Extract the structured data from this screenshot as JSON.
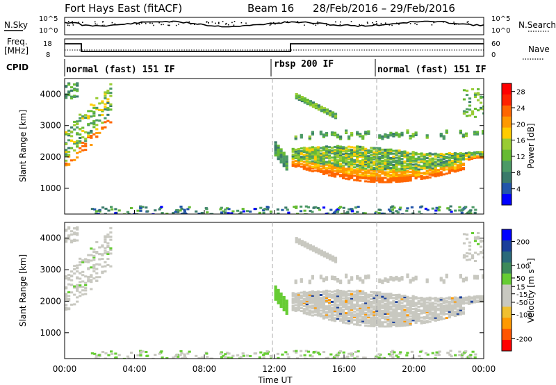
{
  "header": {
    "title": "Fort Hays East (fitACF)",
    "beam": "Beam 16",
    "date_range": "28/Feb/2016 – 29/Feb/2016"
  },
  "noise_panel": {
    "left_label": "N.Sky",
    "right_label": "N.Search",
    "left_ticks": [
      "10^5",
      "10^0"
    ],
    "right_ticks": [
      "10^5",
      "10^0"
    ]
  },
  "freq_panel": {
    "left_label_line1": "Freq.",
    "left_label_line2": "[MHz]",
    "right_label": "Nave",
    "left_ticks": [
      "18",
      "8"
    ],
    "right_ticks": [
      "60",
      "0"
    ]
  },
  "cpid": {
    "label": "CPID",
    "modes": [
      {
        "text": "normal (fast) 151 IF",
        "start_hour": 0
      },
      {
        "text": "rbsp 200 IF",
        "start_hour": 12
      },
      {
        "text": "normal (fast) 151 IF",
        "start_hour": 18
      }
    ]
  },
  "colors": {
    "power": [
      "#0000ff",
      "#2255aa",
      "#3a7a6a",
      "#4c9a66",
      "#66bb33",
      "#99cc33",
      "#ffcc00",
      "#ff9900",
      "#ff6600",
      "#ff2200",
      "#ff0000"
    ],
    "velocity": [
      "#0000ff",
      "#1a3f9a",
      "#2a6a7a",
      "#3d8a5a",
      "#66cc33",
      "#c8c8c0",
      "#c8c8c0",
      "#f0c030",
      "#ff9900",
      "#ff5500",
      "#ff0000"
    ]
  },
  "chart_data": [
    {
      "type": "heatmap",
      "name": "power",
      "ylabel": "Slant Range [km]",
      "ylim": [
        180,
        4500
      ],
      "yticks": [
        "4000",
        "3000",
        "2000",
        "1000"
      ],
      "colorbar_label": "Power [dB]",
      "colorbar_ticks": [
        "28",
        "24",
        "20",
        "16",
        "12",
        "8",
        "4"
      ],
      "colorbar_range": [
        0,
        30
      ]
    },
    {
      "type": "heatmap",
      "name": "velocity",
      "ylabel": "Slant Range [km]",
      "ylim": [
        180,
        4500
      ],
      "yticks": [
        "4000",
        "3000",
        "2000",
        "1000"
      ],
      "xlabel": "Time UT",
      "xlim": [
        "00:00",
        "00:00"
      ],
      "xticks": [
        "00:00",
        "04:00",
        "08:00",
        "12:00",
        "16:00",
        "20:00",
        "00:00"
      ],
      "colorbar_label": "Velocity [m s⁻¹]",
      "colorbar_ticks": [
        "200",
        "100",
        "50",
        "15",
        "-15",
        "-50",
        "-100",
        "-200"
      ],
      "colorbar_range": [
        -250,
        250
      ]
    }
  ]
}
